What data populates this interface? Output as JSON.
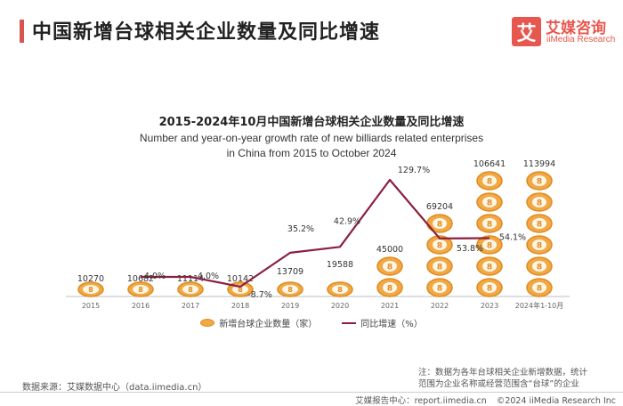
{
  "header": {
    "title": "中国新增台球相关企业数量及同比增速",
    "logo_mark": "艾",
    "logo_cn": "艾媒咨询",
    "logo_en": "iiMedia Research"
  },
  "chart_data": {
    "type": "bar+line",
    "title": "2015-2024年10月中国新增台球相关企业数量及同比增速",
    "subtitle_line1": "Number and year-on-year growth rate of new billiards related enterprises",
    "subtitle_line2": "in China from 2015 to October 2024",
    "categories": [
      "2015",
      "2016",
      "2017",
      "2018",
      "2019",
      "2020",
      "2021",
      "2022",
      "2023",
      "2024年1-10月"
    ],
    "series": [
      {
        "name": "新增台球企业数量（家）",
        "kind": "pictogram-bar",
        "values": [
          10270,
          10682,
          11114,
          10142,
          13709,
          19588,
          45000,
          69204,
          106641,
          113994
        ],
        "labels": [
          "10270",
          "10682",
          "11114",
          "10142",
          "13709",
          "19588",
          "45000",
          "69204",
          "106641",
          "113994"
        ]
      },
      {
        "name": "同比增速（%）",
        "kind": "line",
        "values": [
          null,
          4.0,
          4.0,
          -8.7,
          35.2,
          42.9,
          129.7,
          53.8,
          54.1,
          null
        ],
        "labels": [
          "",
          "4.0%",
          "4.0%",
          "-8.7%",
          "35.2%",
          "42.9%",
          "129.7%",
          "53.8%",
          "54.1%",
          ""
        ]
      }
    ],
    "legend": [
      "新增台球企业数量（家）",
      "同比增速（%）"
    ],
    "colors": {
      "coin": "#f0a945",
      "coin_edge": "#e08a1e",
      "line": "#8b1f3f"
    }
  },
  "footer": {
    "source": "数据来源：艾媒数据中心（data.iimedia.cn）",
    "note_line1": "注：数据为各年台球相关企业新增数据，统计",
    "note_line2": "范围为企业名称或经营范围含“台球”的企业",
    "center_label": "艾媒报告中心：report.iimedia.cn",
    "copyright": "©2024 iiMedia Research Inc"
  }
}
